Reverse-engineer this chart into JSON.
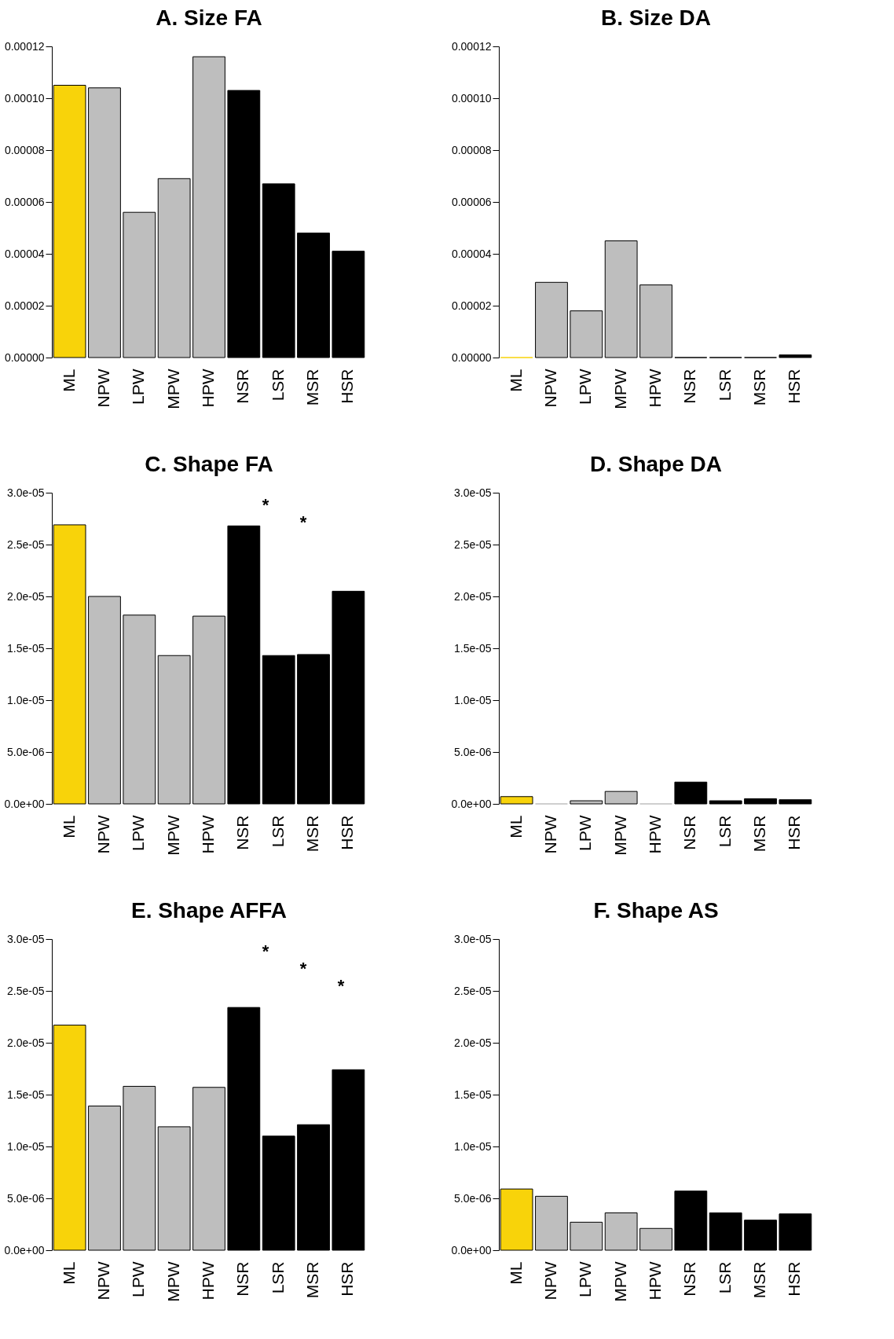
{
  "chart_data": [
    {
      "type": "bar",
      "title": "A.   Size FA",
      "categories": [
        "ML",
        "NPW",
        "LPW",
        "MPW",
        "HPW",
        "NSR",
        "LSR",
        "MSR",
        "HSR"
      ],
      "values": [
        0.000105,
        0.000104,
        5.6e-05,
        6.9e-05,
        0.000116,
        0.000103,
        6.7e-05,
        4.8e-05,
        4.1e-05
      ],
      "colors": [
        "#f8d30a",
        "#bebebe",
        "#bebebe",
        "#bebebe",
        "#bebebe",
        "#000000",
        "#000000",
        "#000000",
        "#000000"
      ],
      "ylim": [
        0,
        0.00012
      ],
      "yticks": [
        {
          "value": 0,
          "label": "0.00000"
        },
        {
          "value": 2e-05,
          "label": "0.00002"
        },
        {
          "value": 4e-05,
          "label": "0.00004"
        },
        {
          "value": 6e-05,
          "label": "0.00006"
        },
        {
          "value": 8e-05,
          "label": "0.00008"
        },
        {
          "value": 0.0001,
          "label": "0.00010"
        },
        {
          "value": 0.00012,
          "label": "0.00012"
        }
      ]
    },
    {
      "type": "bar",
      "title": "B.   Size DA",
      "categories": [
        "ML",
        "NPW",
        "LPW",
        "MPW",
        "HPW",
        "NSR",
        "LSR",
        "MSR",
        "HSR"
      ],
      "values": [
        0,
        2.9e-05,
        1.8e-05,
        4.5e-05,
        2.8e-05,
        0,
        0,
        0,
        1e-06
      ],
      "colors": [
        "#f8d30a",
        "#bebebe",
        "#bebebe",
        "#bebebe",
        "#bebebe",
        "#000000",
        "#000000",
        "#000000",
        "#000000"
      ],
      "ylim": [
        0,
        0.00012
      ],
      "yticks": [
        {
          "value": 0,
          "label": "0.00000"
        },
        {
          "value": 2e-05,
          "label": "0.00002"
        },
        {
          "value": 4e-05,
          "label": "0.00004"
        },
        {
          "value": 6e-05,
          "label": "0.00006"
        },
        {
          "value": 8e-05,
          "label": "0.00008"
        },
        {
          "value": 0.0001,
          "label": "0.00010"
        },
        {
          "value": 0.00012,
          "label": "0.00012"
        }
      ]
    },
    {
      "type": "bar",
      "title": "C.   Shape FA",
      "categories": [
        "ML",
        "NPW",
        "LPW",
        "MPW",
        "HPW",
        "NSR",
        "LSR",
        "MSR",
        "HSR"
      ],
      "values": [
        2.69e-05,
        2e-05,
        1.82e-05,
        1.43e-05,
        1.81e-05,
        2.68e-05,
        1.43e-05,
        1.44e-05,
        2.05e-05
      ],
      "colors": [
        "#f8d30a",
        "#bebebe",
        "#bebebe",
        "#bebebe",
        "#bebebe",
        "#000000",
        "#000000",
        "#000000",
        "#000000"
      ],
      "ylim": [
        0,
        3e-05
      ],
      "yticks": [
        {
          "value": 0,
          "label": "0.0e+00"
        },
        {
          "value": 5e-06,
          "label": "5.0e-06"
        },
        {
          "value": 1e-05,
          "label": "1.0e-05"
        },
        {
          "value": 1.5e-05,
          "label": "1.5e-05"
        },
        {
          "value": 2e-05,
          "label": "2.0e-05"
        },
        {
          "value": 2.5e-05,
          "label": "2.5e-05"
        },
        {
          "value": 3e-05,
          "label": "3.0e-05"
        }
      ],
      "annotations": [
        "*",
        "*"
      ]
    },
    {
      "type": "bar",
      "title": "D.   Shape DA",
      "categories": [
        "ML",
        "NPW",
        "LPW",
        "MPW",
        "HPW",
        "NSR",
        "LSR",
        "MSR",
        "HSR"
      ],
      "values": [
        7e-07,
        0,
        3e-07,
        1.2e-06,
        0,
        2.1e-06,
        3e-07,
        5e-07,
        4e-07
      ],
      "colors": [
        "#f8d30a",
        "#bebebe",
        "#bebebe",
        "#bebebe",
        "#bebebe",
        "#000000",
        "#000000",
        "#000000",
        "#000000"
      ],
      "ylim": [
        0,
        3e-05
      ],
      "yticks": [
        {
          "value": 0,
          "label": "0.0e+00"
        },
        {
          "value": 5e-06,
          "label": "5.0e-06"
        },
        {
          "value": 1e-05,
          "label": "1.0e-05"
        },
        {
          "value": 1.5e-05,
          "label": "1.5e-05"
        },
        {
          "value": 2e-05,
          "label": "2.0e-05"
        },
        {
          "value": 2.5e-05,
          "label": "2.5e-05"
        },
        {
          "value": 3e-05,
          "label": "3.0e-05"
        }
      ]
    },
    {
      "type": "bar",
      "title": "E.   Shape AFFA",
      "categories": [
        "ML",
        "NPW",
        "LPW",
        "MPW",
        "HPW",
        "NSR",
        "LSR",
        "MSR",
        "HSR"
      ],
      "values": [
        2.17e-05,
        1.39e-05,
        1.58e-05,
        1.19e-05,
        1.57e-05,
        2.34e-05,
        1.1e-05,
        1.21e-05,
        1.74e-05
      ],
      "colors": [
        "#f8d30a",
        "#bebebe",
        "#bebebe",
        "#bebebe",
        "#bebebe",
        "#000000",
        "#000000",
        "#000000",
        "#000000"
      ],
      "ylim": [
        0,
        3e-05
      ],
      "yticks": [
        {
          "value": 0,
          "label": "0.0e+00"
        },
        {
          "value": 5e-06,
          "label": "5.0e-06"
        },
        {
          "value": 1e-05,
          "label": "1.0e-05"
        },
        {
          "value": 1.5e-05,
          "label": "1.5e-05"
        },
        {
          "value": 2e-05,
          "label": "2.0e-05"
        },
        {
          "value": 2.5e-05,
          "label": "2.5e-05"
        },
        {
          "value": 3e-05,
          "label": "3.0e-05"
        }
      ],
      "annotations": [
        "*",
        "*",
        "*"
      ]
    },
    {
      "type": "bar",
      "title": "F.   Shape AS",
      "categories": [
        "ML",
        "NPW",
        "LPW",
        "MPW",
        "HPW",
        "NSR",
        "LSR",
        "MSR",
        "HSR"
      ],
      "values": [
        5.9e-06,
        5.2e-06,
        2.7e-06,
        3.6e-06,
        2.1e-06,
        5.7e-06,
        3.6e-06,
        2.9e-06,
        3.5e-06
      ],
      "colors": [
        "#f8d30a",
        "#bebebe",
        "#bebebe",
        "#bebebe",
        "#bebebe",
        "#000000",
        "#000000",
        "#000000",
        "#000000"
      ],
      "ylim": [
        0,
        3e-05
      ],
      "yticks": [
        {
          "value": 0,
          "label": "0.0e+00"
        },
        {
          "value": 5e-06,
          "label": "5.0e-06"
        },
        {
          "value": 1e-05,
          "label": "1.0e-05"
        },
        {
          "value": 1.5e-05,
          "label": "1.5e-05"
        },
        {
          "value": 2e-05,
          "label": "2.0e-05"
        },
        {
          "value": 2.5e-05,
          "label": "2.5e-05"
        },
        {
          "value": 3e-05,
          "label": "3.0e-05"
        }
      ]
    }
  ]
}
